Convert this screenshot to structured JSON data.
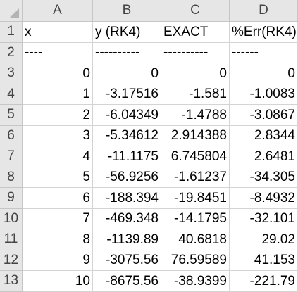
{
  "columns": [
    "A",
    "B",
    "C",
    "D"
  ],
  "row_numbers": [
    "1",
    "2",
    "3",
    "4",
    "5",
    "6",
    "7",
    "8",
    "9",
    "10",
    "11",
    "12",
    "13"
  ],
  "headers": [
    "x",
    "y (RK4)",
    "EXACT",
    "%Err(RK4)"
  ],
  "dashes": [
    "----",
    "----------",
    "----------",
    "------"
  ],
  "rows": [
    [
      "0",
      "0",
      "0",
      "0"
    ],
    [
      "1",
      "-3.17516",
      "-1.581",
      "-1.0083"
    ],
    [
      "2",
      "-6.04349",
      "-1.4788",
      "-3.0867"
    ],
    [
      "3",
      "-5.34612",
      "2.914388",
      "2.8344"
    ],
    [
      "4",
      "-11.1175",
      "6.745804",
      "2.6481"
    ],
    [
      "5",
      "-56.9256",
      "-1.61237",
      "-34.305"
    ],
    [
      "6",
      "-188.394",
      "-19.8451",
      "-8.4932"
    ],
    [
      "7",
      "-469.348",
      "-14.1795",
      "-32.101"
    ],
    [
      "8",
      "-1139.89",
      "40.6818",
      "29.02"
    ],
    [
      "9",
      "-3075.56",
      "76.59589",
      "41.153"
    ],
    [
      "10",
      "-8675.56",
      "-38.9399",
      "-221.79"
    ]
  ]
}
